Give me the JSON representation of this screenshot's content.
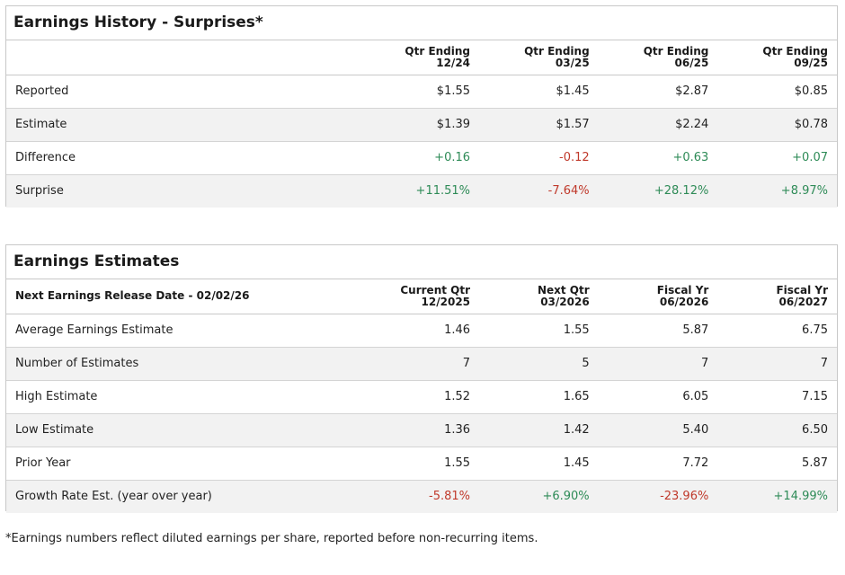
{
  "history": {
    "title": "Earnings History - Surprises*",
    "headers": [
      {
        "line1": "Qtr Ending",
        "line2": "12/24"
      },
      {
        "line1": "Qtr Ending",
        "line2": "03/25"
      },
      {
        "line1": "Qtr Ending",
        "line2": "06/25"
      },
      {
        "line1": "Qtr Ending",
        "line2": "09/25"
      }
    ],
    "rows": [
      {
        "label": "Reported",
        "values": [
          "$1.55",
          "$1.45",
          "$2.87",
          "$0.85"
        ]
      },
      {
        "label": "Estimate",
        "values": [
          "$1.39",
          "$1.57",
          "$2.24",
          "$0.78"
        ]
      },
      {
        "label": "Difference",
        "values": [
          "+0.16",
          "-0.12",
          "+0.63",
          "+0.07"
        ]
      },
      {
        "label": "Surprise",
        "values": [
          "+11.51%",
          "-7.64%",
          "+28.12%",
          "+8.97%"
        ]
      }
    ]
  },
  "estimates": {
    "title": "Earnings Estimates",
    "release_label": "Next Earnings Release Date - 02/02/26",
    "headers": [
      {
        "line1": "Current Qtr",
        "line2": "12/2025"
      },
      {
        "line1": "Next Qtr",
        "line2": "03/2026"
      },
      {
        "line1": "Fiscal Yr",
        "line2": "06/2026"
      },
      {
        "line1": "Fiscal Yr",
        "line2": "06/2027"
      }
    ],
    "rows": [
      {
        "label": "Average Earnings Estimate",
        "values": [
          "1.46",
          "1.55",
          "5.87",
          "6.75"
        ]
      },
      {
        "label": "Number of Estimates",
        "values": [
          "7",
          "5",
          "7",
          "7"
        ]
      },
      {
        "label": "High Estimate",
        "values": [
          "1.52",
          "1.65",
          "6.05",
          "7.15"
        ]
      },
      {
        "label": "Low Estimate",
        "values": [
          "1.36",
          "1.42",
          "5.40",
          "6.50"
        ]
      },
      {
        "label": "Prior Year",
        "values": [
          "1.55",
          "1.45",
          "7.72",
          "5.87"
        ]
      },
      {
        "label": "Growth Rate Est. (year over year)",
        "values": [
          "-5.81%",
          "+6.90%",
          "-23.96%",
          "+14.99%"
        ]
      }
    ]
  },
  "footnote": "*Earnings numbers reflect diluted earnings per share, reported before non-recurring items.",
  "colors": {
    "positive": "#2e8b57",
    "negative": "#c0392b",
    "row_alt": "#f2f2f2"
  }
}
